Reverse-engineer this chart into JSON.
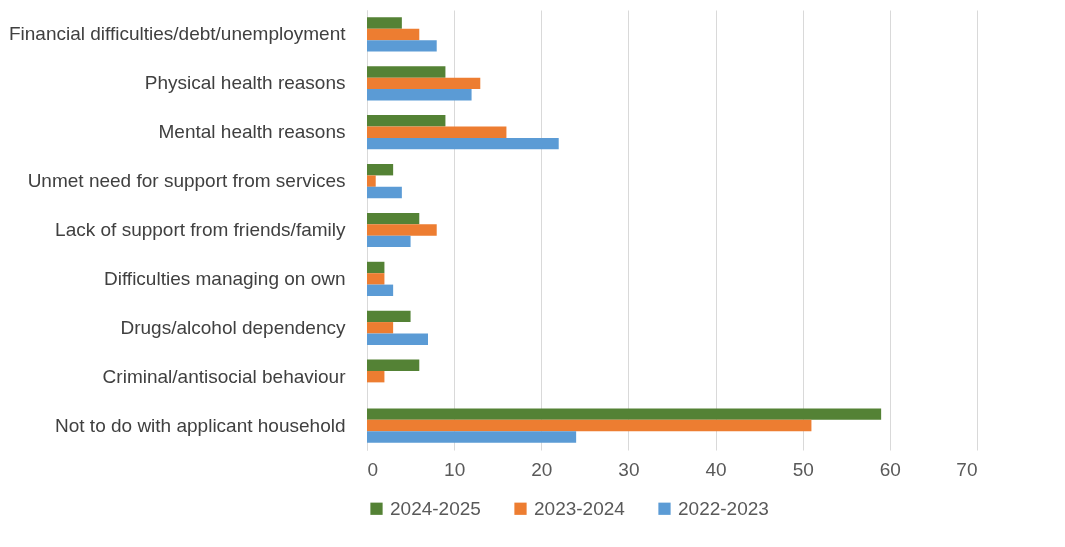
{
  "chart_data": {
    "type": "bar",
    "orientation": "horizontal",
    "categories": [
      "Financial difficulties/debt/unemployment",
      "Physical health reasons",
      "Mental health reasons",
      "Unmet need for support from services",
      "Lack of support from friends/family",
      "Difficulties managing on own",
      "Drugs/alcohol dependency",
      "Criminal/antisocial behaviour",
      "Not to do with applicant household"
    ],
    "series": [
      {
        "name": "2024-2025",
        "color": "#548235",
        "values": [
          4,
          9,
          9,
          3,
          6,
          2,
          5,
          6,
          59
        ]
      },
      {
        "name": "2023-2024",
        "color": "#ed7d31",
        "values": [
          6,
          13,
          16,
          1,
          8,
          2,
          3,
          2,
          51
        ]
      },
      {
        "name": "2022-2023",
        "color": "#5b9bd5",
        "values": [
          8,
          12,
          22,
          4,
          5,
          3,
          7,
          0,
          24
        ]
      }
    ],
    "xlim": [
      0,
      70
    ],
    "xticks": [
      0,
      10,
      20,
      30,
      40,
      50,
      60,
      70
    ],
    "grid": "x",
    "legend": "bottom"
  }
}
